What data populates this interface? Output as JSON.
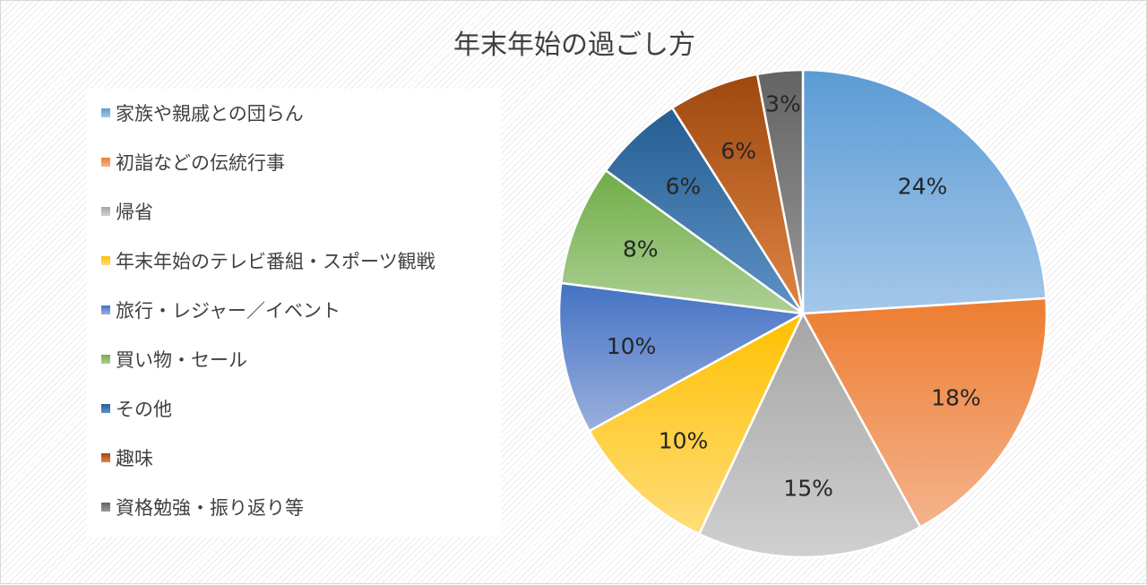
{
  "chart_data": {
    "type": "pie",
    "title": "年末年始の過ごし方",
    "legend_position": "left",
    "slices": [
      {
        "label": "家族や親戚との団らん",
        "value": 24,
        "display": "24%",
        "color": "#5B9BD5",
        "color_light": "#A5C8E9"
      },
      {
        "label": "初詣などの伝統行事",
        "value": 18,
        "display": "18%",
        "color": "#ED7D31",
        "color_light": "#F5B38C"
      },
      {
        "label": "帰省",
        "value": 15,
        "display": "15%",
        "color": "#A5A5A5",
        "color_light": "#D0D0D0"
      },
      {
        "label": "年末年始のテレビ番組・スポーツ観戦",
        "value": 10,
        "display": "10%",
        "color": "#FFC000",
        "color_light": "#FFDD7A"
      },
      {
        "label": "旅行・レジャー／イベント",
        "value": 10,
        "display": "10%",
        "color": "#4472C4",
        "color_light": "#9AB0DD"
      },
      {
        "label": "買い物・セール",
        "value": 8,
        "display": "8%",
        "color": "#70AD47",
        "color_light": "#ADD096"
      },
      {
        "label": "その他",
        "value": 6,
        "display": "6%",
        "color": "#255E91",
        "color_light": "#5F92C7"
      },
      {
        "label": "趣味",
        "value": 6,
        "display": "6%",
        "color": "#9E480E",
        "color_light": "#E08545"
      },
      {
        "label": "資格勉強・振り返り等",
        "value": 3,
        "display": "3%",
        "color": "#636363",
        "color_light": "#999999"
      }
    ]
  }
}
